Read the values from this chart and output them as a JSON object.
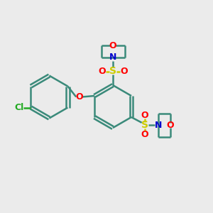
{
  "background_color": "#ebebeb",
  "bond_color": "#3a8a7a",
  "O_color": "#ff0000",
  "N_color": "#0000cc",
  "S_color": "#cccc00",
  "Cl_color": "#22aa22",
  "line_width": 1.8,
  "font_size": 9,
  "figsize": [
    3.0,
    3.0
  ],
  "dpi": 100,
  "xlim": [
    0,
    10
  ],
  "ylim": [
    0,
    10
  ]
}
